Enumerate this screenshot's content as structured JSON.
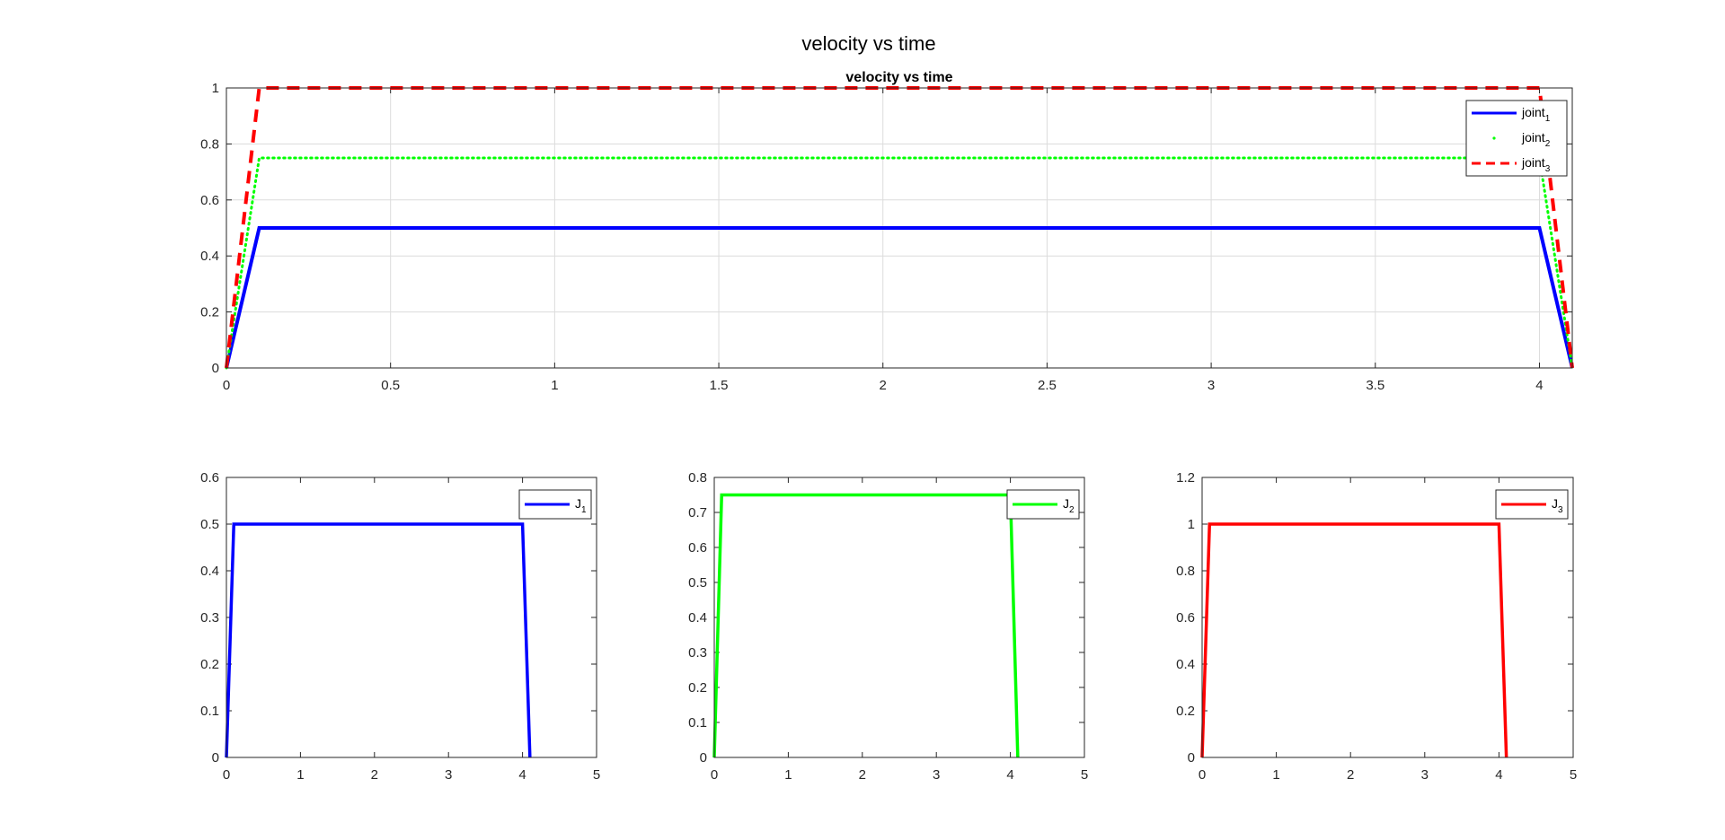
{
  "figure": {
    "title": "velocity vs time"
  },
  "chart_data": [
    {
      "type": "line",
      "title": "velocity vs time",
      "xlabel": "",
      "ylabel": "",
      "xlim": [
        0,
        4.1
      ],
      "ylim": [
        0,
        1
      ],
      "xticks": [
        0,
        0.5,
        1,
        1.5,
        2,
        2.5,
        3,
        3.5,
        4
      ],
      "yticks": [
        0,
        0.2,
        0.4,
        0.6,
        0.8,
        1
      ],
      "grid": true,
      "legend": "top-right",
      "series": [
        {
          "name": "joint",
          "subscript": "1",
          "color": "#0000ff",
          "style": "solid",
          "x": [
            0,
            0.1,
            4.0,
            4.1
          ],
          "y": [
            0,
            0.5,
            0.5,
            0
          ]
        },
        {
          "name": "joint",
          "subscript": "2",
          "color": "#00ff00",
          "style": "dotted",
          "x": [
            0,
            0.1,
            4.0,
            4.1
          ],
          "y": [
            0,
            0.75,
            0.75,
            0
          ]
        },
        {
          "name": "joint",
          "subscript": "3",
          "color": "#ff0000",
          "style": "dashed",
          "x": [
            0,
            0.1,
            4.0,
            4.1
          ],
          "y": [
            0,
            1,
            1,
            0
          ]
        }
      ]
    },
    {
      "type": "line",
      "title": "",
      "xlabel": "",
      "ylabel": "",
      "xlim": [
        0,
        5
      ],
      "ylim": [
        0,
        0.6
      ],
      "xticks": [
        0,
        1,
        2,
        3,
        4,
        5
      ],
      "yticks": [
        0,
        0.1,
        0.2,
        0.3,
        0.4,
        0.5,
        0.6
      ],
      "grid": false,
      "legend": "top-right",
      "series": [
        {
          "name": "J",
          "subscript": "1",
          "color": "#0000ff",
          "style": "solid",
          "x": [
            0,
            0.1,
            4.0,
            4.1
          ],
          "y": [
            0,
            0.5,
            0.5,
            0
          ]
        }
      ]
    },
    {
      "type": "line",
      "title": "",
      "xlabel": "",
      "ylabel": "",
      "xlim": [
        0,
        5
      ],
      "ylim": [
        0,
        0.8
      ],
      "xticks": [
        0,
        1,
        2,
        3,
        4,
        5
      ],
      "yticks": [
        0,
        0.1,
        0.2,
        0.3,
        0.4,
        0.5,
        0.6,
        0.7,
        0.8
      ],
      "grid": false,
      "legend": "top-right",
      "series": [
        {
          "name": "J",
          "subscript": "2",
          "color": "#00ff00",
          "style": "solid",
          "x": [
            0,
            0.1,
            4.0,
            4.1
          ],
          "y": [
            0,
            0.75,
            0.75,
            0
          ]
        }
      ]
    },
    {
      "type": "line",
      "title": "",
      "xlabel": "",
      "ylabel": "",
      "xlim": [
        0,
        5
      ],
      "ylim": [
        0,
        1.2
      ],
      "xticks": [
        0,
        1,
        2,
        3,
        4,
        5
      ],
      "yticks": [
        0,
        0.2,
        0.4,
        0.6,
        0.8,
        1,
        1.2
      ],
      "grid": false,
      "legend": "top-right",
      "series": [
        {
          "name": "J",
          "subscript": "3",
          "color": "#ff0000",
          "style": "solid",
          "x": [
            0,
            0.1,
            4.0,
            4.1
          ],
          "y": [
            0,
            1,
            1,
            0
          ]
        }
      ]
    }
  ]
}
